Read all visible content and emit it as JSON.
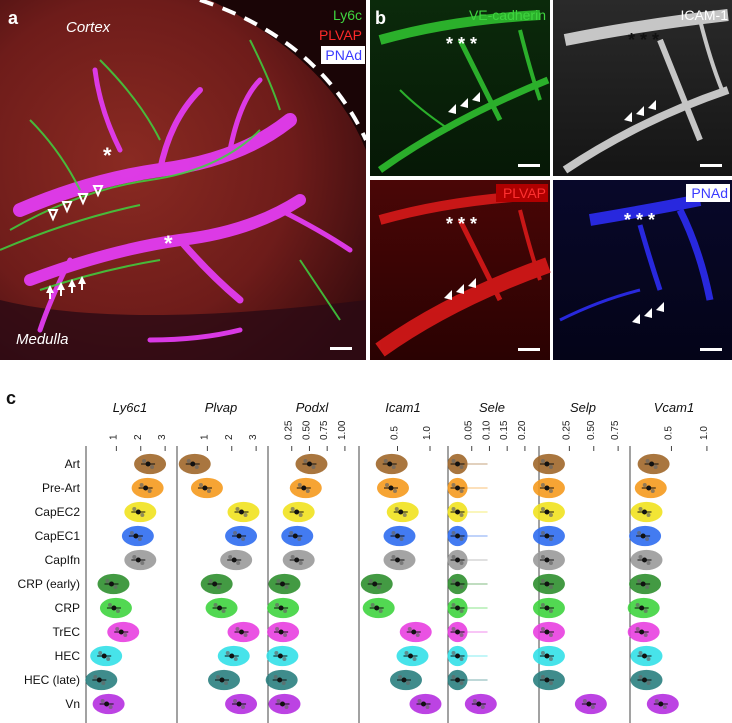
{
  "panel_a": {
    "letter": "a",
    "region_top": "Cortex",
    "region_bottom": "Medulla",
    "legend": [
      {
        "text": "Ly6c",
        "color": "#3fd43f"
      },
      {
        "text": "PLVAP",
        "color": "#ff2a2a"
      },
      {
        "text": "PNAd",
        "color": "#5a5aff"
      }
    ],
    "asterisk": "*"
  },
  "panel_b": {
    "letter": "b",
    "tiles": [
      {
        "label": "VE-cadherin",
        "color": "#3fd43f",
        "label_bg": "",
        "channel": "green"
      },
      {
        "label": "ICAM-1",
        "color": "#ffffff",
        "label_bg": "",
        "channel": "white"
      },
      {
        "label": "PLVAP",
        "color": "#ff3030",
        "label_bg": "#b00000",
        "channel": "red"
      },
      {
        "label": "PNAd",
        "color": "#8080ff",
        "label_bg": "#ffffff",
        "channel": "blue"
      }
    ],
    "asterisks": "* * *"
  },
  "panel_c": {
    "letter": "c",
    "chart_data": {
      "type": "violin",
      "genes": [
        "Ly6c1",
        "Plvap",
        "Podxl",
        "Icam1",
        "Sele",
        "Selp",
        "Vcam1"
      ],
      "tick_labels": [
        [
          "1",
          "2",
          "3"
        ],
        [
          "1",
          "2",
          "3"
        ],
        [
          "0.25",
          "0.50",
          "0.75",
          "1.00"
        ],
        [
          "0.5",
          "1.0"
        ],
        [
          "0.05",
          "0.10",
          "0.15",
          "0.20"
        ],
        [
          "0.25",
          "0.50",
          "0.75"
        ],
        [
          "0.5",
          "1.0"
        ]
      ],
      "cell_types": [
        "Art",
        "Pre-Art",
        "CapEC2",
        "CapEC1",
        "CapIfn",
        "CRP (early)",
        "CRP",
        "TrEC",
        "HEC",
        "HEC (late)",
        "Vn"
      ],
      "colors": [
        "#a0672a",
        "#f59a1e",
        "#f1e21f",
        "#2f6df0",
        "#9a9a9a",
        "#2f8f2f",
        "#3fd43f",
        "#e83fe0",
        "#33e0e8",
        "#2a7f80",
        "#b52fe0"
      ],
      "medians": [
        [
          2.3,
          0.4,
          0.5,
          0.38,
          0.01,
          0.02,
          0.22
        ],
        [
          2.2,
          0.9,
          0.42,
          0.4,
          0.01,
          0.02,
          0.18
        ],
        [
          1.9,
          2.4,
          0.32,
          0.55,
          0.01,
          0.02,
          0.12
        ],
        [
          1.8,
          2.3,
          0.3,
          0.5,
          0.01,
          0.02,
          0.1
        ],
        [
          1.9,
          2.1,
          0.32,
          0.5,
          0.01,
          0.02,
          0.12
        ],
        [
          0.8,
          1.3,
          0.12,
          0.15,
          0.01,
          0.02,
          0.1
        ],
        [
          0.9,
          1.5,
          0.1,
          0.18,
          0.01,
          0.02,
          0.08
        ],
        [
          1.2,
          2.4,
          0.1,
          0.75,
          0.01,
          0.02,
          0.08
        ],
        [
          0.5,
          2.0,
          0.09,
          0.7,
          0.01,
          0.02,
          0.12
        ],
        [
          0.3,
          1.6,
          0.08,
          0.6,
          0.01,
          0.02,
          0.12
        ],
        [
          0.6,
          2.3,
          0.12,
          0.9,
          0.07,
          0.45,
          0.35
        ]
      ]
    }
  }
}
